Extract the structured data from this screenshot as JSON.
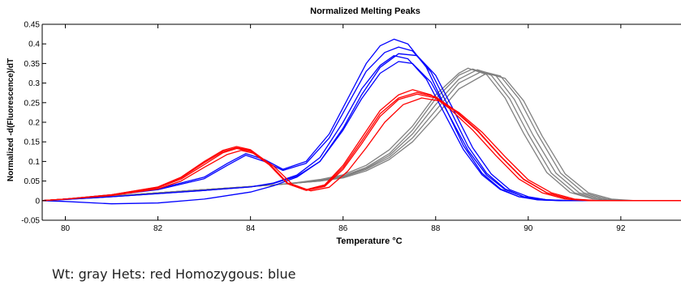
{
  "caption": "Wt:  gray Hets: red Homozygous: blue",
  "colors": {
    "wt": "#808080",
    "het": "#ff0000",
    "hom": "#0000ff",
    "axis": "#000000",
    "background": "#ffffff"
  },
  "chart_data": {
    "type": "line",
    "title": "Normalized Melting Peaks",
    "xlabel": "Temperature °C",
    "ylabel": "Normalized -d(Fluorescence)/dT",
    "xlim": [
      79.5,
      93.3
    ],
    "ylim": [
      -0.05,
      0.45
    ],
    "xticks": [
      80,
      82,
      84,
      86,
      88,
      90,
      92
    ],
    "yticks": [
      -0.05,
      0,
      0.05,
      0.1,
      0.15,
      0.2,
      0.25,
      0.3,
      0.35,
      0.4,
      0.45
    ],
    "ytick_labels": [
      "-0.05",
      "0",
      "0.05",
      "0.1",
      "0.15",
      "0.2",
      "0.25",
      "0.3",
      "0.35",
      "0.4",
      "0.45"
    ],
    "grid": false,
    "legend": "none",
    "series": [
      {
        "group": "wt",
        "color": "#808080",
        "x": [
          79.5,
          80,
          81,
          82,
          83,
          84,
          84.5,
          85,
          85.5,
          86,
          86.5,
          87,
          87.5,
          88,
          88.5,
          88.8,
          89.2,
          89.6,
          90,
          90.5,
          91,
          91.5,
          92,
          93.3
        ],
        "y": [
          0,
          0.004,
          0.012,
          0.02,
          0.028,
          0.036,
          0.04,
          0.045,
          0.052,
          0.063,
          0.085,
          0.12,
          0.18,
          0.26,
          0.32,
          0.336,
          0.32,
          0.26,
          0.17,
          0.07,
          0.02,
          0.004,
          0,
          0
        ]
      },
      {
        "group": "wt",
        "color": "#808080",
        "x": [
          79.5,
          80,
          81,
          82,
          83,
          84,
          84.5,
          85,
          85.5,
          86,
          86.5,
          87,
          87.5,
          88,
          88.5,
          89,
          89.4,
          89.8,
          90.2,
          90.7,
          91.2,
          91.7,
          92.2,
          93.3
        ],
        "y": [
          0,
          0.004,
          0.012,
          0.02,
          0.028,
          0.036,
          0.04,
          0.045,
          0.05,
          0.06,
          0.08,
          0.11,
          0.16,
          0.23,
          0.3,
          0.33,
          0.318,
          0.26,
          0.17,
          0.07,
          0.02,
          0.004,
          0,
          0
        ]
      },
      {
        "group": "wt",
        "color": "#808080",
        "x": [
          79.5,
          80,
          81,
          82,
          83,
          84,
          84.5,
          85,
          85.5,
          86,
          86.5,
          87,
          87.5,
          88,
          88.5,
          88.7,
          89.1,
          89.5,
          89.9,
          90.4,
          90.9,
          91.4,
          91.9,
          93.3
        ],
        "y": [
          0,
          0.004,
          0.012,
          0.02,
          0.028,
          0.036,
          0.04,
          0.046,
          0.054,
          0.066,
          0.09,
          0.13,
          0.19,
          0.27,
          0.325,
          0.338,
          0.322,
          0.262,
          0.172,
          0.072,
          0.021,
          0.004,
          0,
          0
        ]
      },
      {
        "group": "wt",
        "color": "#808080",
        "x": [
          79.5,
          80,
          81,
          82,
          83,
          84,
          84.5,
          85,
          85.5,
          86,
          86.5,
          87,
          87.5,
          88,
          88.5,
          88.9,
          89.3,
          89.7,
          90.1,
          90.6,
          91.1,
          91.6,
          92.1,
          93.3
        ],
        "y": [
          0,
          0.004,
          0.012,
          0.02,
          0.028,
          0.036,
          0.04,
          0.045,
          0.051,
          0.062,
          0.082,
          0.115,
          0.17,
          0.245,
          0.31,
          0.334,
          0.319,
          0.258,
          0.168,
          0.07,
          0.02,
          0.004,
          0,
          0
        ]
      },
      {
        "group": "wt",
        "color": "#808080",
        "x": [
          79.5,
          80,
          81,
          82,
          83,
          84,
          84.5,
          85,
          85.5,
          86,
          86.5,
          87,
          87.5,
          88,
          88.5,
          89.1,
          89.5,
          89.9,
          90.3,
          90.8,
          91.3,
          91.8,
          92.3,
          93.3
        ],
        "y": [
          0,
          0.004,
          0.012,
          0.02,
          0.028,
          0.036,
          0.04,
          0.045,
          0.05,
          0.058,
          0.076,
          0.105,
          0.15,
          0.215,
          0.285,
          0.325,
          0.312,
          0.255,
          0.165,
          0.068,
          0.02,
          0.004,
          0,
          0
        ]
      },
      {
        "group": "het",
        "color": "#ff0000",
        "x": [
          79.5,
          80,
          81,
          82,
          82.5,
          83,
          83.4,
          83.7,
          84,
          84.4,
          84.8,
          85.2,
          85.6,
          86,
          86.4,
          86.8,
          87.2,
          87.5,
          87.9,
          88.3,
          88.8,
          89.3,
          89.8,
          90.3,
          90.8,
          91.3,
          93.3
        ],
        "y": [
          0,
          0.004,
          0.015,
          0.035,
          0.06,
          0.1,
          0.128,
          0.138,
          0.13,
          0.095,
          0.045,
          0.028,
          0.04,
          0.09,
          0.16,
          0.23,
          0.27,
          0.283,
          0.27,
          0.235,
          0.18,
          0.115,
          0.055,
          0.02,
          0.004,
          0,
          0
        ]
      },
      {
        "group": "het",
        "color": "#ff0000",
        "x": [
          79.5,
          80,
          81,
          82,
          82.5,
          83,
          83.4,
          83.7,
          84,
          84.4,
          84.8,
          85.2,
          85.6,
          86,
          86.4,
          86.8,
          87.2,
          87.6,
          88,
          88.4,
          88.9,
          89.4,
          89.9,
          90.4,
          90.9,
          91.4,
          93.3
        ],
        "y": [
          0,
          0.004,
          0.014,
          0.033,
          0.055,
          0.092,
          0.122,
          0.133,
          0.126,
          0.092,
          0.043,
          0.026,
          0.036,
          0.08,
          0.145,
          0.215,
          0.258,
          0.272,
          0.262,
          0.23,
          0.178,
          0.113,
          0.054,
          0.02,
          0.004,
          0,
          0
        ]
      },
      {
        "group": "het",
        "color": "#ff0000",
        "x": [
          79.5,
          80,
          81,
          82,
          82.5,
          83,
          83.5,
          83.8,
          84.1,
          84.5,
          84.9,
          85.3,
          85.7,
          86.1,
          86.5,
          86.9,
          87.3,
          87.7,
          88.1,
          88.5,
          89,
          89.5,
          90,
          90.5,
          91,
          91.5,
          93.3
        ],
        "y": [
          0,
          0.004,
          0.013,
          0.03,
          0.05,
          0.085,
          0.118,
          0.128,
          0.12,
          0.088,
          0.042,
          0.025,
          0.034,
          0.075,
          0.135,
          0.2,
          0.245,
          0.262,
          0.254,
          0.225,
          0.175,
          0.112,
          0.053,
          0.02,
          0.004,
          0,
          0
        ]
      },
      {
        "group": "het",
        "color": "#ff0000",
        "x": [
          79.5,
          80,
          81,
          82,
          82.5,
          83,
          83.4,
          83.7,
          84,
          84.4,
          84.8,
          85.2,
          85.6,
          86,
          86.4,
          86.8,
          87.2,
          87.6,
          88,
          88.4,
          88.9,
          89.4,
          89.9,
          90.4,
          90.9,
          91.4,
          93.3
        ],
        "y": [
          0,
          0.004,
          0.015,
          0.034,
          0.058,
          0.097,
          0.125,
          0.135,
          0.128,
          0.094,
          0.044,
          0.027,
          0.038,
          0.085,
          0.152,
          0.222,
          0.262,
          0.276,
          0.265,
          0.232,
          0.18,
          0.114,
          0.055,
          0.02,
          0.004,
          0,
          0
        ]
      },
      {
        "group": "hom",
        "color": "#0000ff",
        "x": [
          79.5,
          80,
          81,
          82,
          83,
          83.5,
          83.9,
          84.3,
          84.7,
          85.2,
          85.7,
          86.1,
          86.5,
          86.8,
          87.1,
          87.4,
          87.8,
          88.2,
          88.6,
          89,
          89.4,
          89.8,
          90.3,
          90.8,
          91.3,
          93.3
        ],
        "y": [
          0,
          0.004,
          0.015,
          0.03,
          0.06,
          0.095,
          0.12,
          0.105,
          0.08,
          0.1,
          0.17,
          0.26,
          0.35,
          0.395,
          0.412,
          0.4,
          0.34,
          0.24,
          0.14,
          0.07,
          0.03,
          0.01,
          0.002,
          0,
          0,
          0
        ]
      },
      {
        "group": "hom",
        "color": "#0000ff",
        "x": [
          79.5,
          80,
          81,
          82,
          83,
          83.5,
          83.9,
          84.3,
          84.7,
          85.2,
          85.7,
          86.1,
          86.5,
          86.9,
          87.2,
          87.5,
          87.9,
          88.3,
          88.7,
          89.1,
          89.5,
          89.9,
          90.4,
          90.9,
          91.4,
          93.3
        ],
        "y": [
          0,
          0.004,
          0.014,
          0.028,
          0.056,
          0.09,
          0.116,
          0.1,
          0.077,
          0.095,
          0.16,
          0.245,
          0.33,
          0.378,
          0.392,
          0.382,
          0.328,
          0.235,
          0.138,
          0.07,
          0.03,
          0.01,
          0.002,
          0,
          0,
          0
        ]
      },
      {
        "group": "hom",
        "color": "#0000ff",
        "x": [
          79.5,
          80,
          81,
          82,
          83,
          84,
          84.5,
          85,
          85.5,
          86,
          86.4,
          86.8,
          87.1,
          87.4,
          87.8,
          88.2,
          88.6,
          89,
          89.4,
          89.8,
          90.2,
          90.7,
          91.2,
          93.3
        ],
        "y": [
          0,
          0.003,
          0.01,
          0.018,
          0.026,
          0.035,
          0.045,
          0.065,
          0.11,
          0.2,
          0.285,
          0.345,
          0.37,
          0.362,
          0.31,
          0.22,
          0.13,
          0.066,
          0.028,
          0.01,
          0.002,
          0,
          0,
          0
        ]
      },
      {
        "group": "hom",
        "color": "#0000ff",
        "x": [
          79.5,
          80,
          81,
          82,
          83,
          84,
          84.5,
          85,
          85.5,
          86,
          86.4,
          86.8,
          87.2,
          87.5,
          87.9,
          88.3,
          88.7,
          89.1,
          89.5,
          89.9,
          90.3,
          90.8,
          91.3,
          93.3
        ],
        "y": [
          0,
          0.003,
          0.01,
          0.018,
          0.026,
          0.035,
          0.044,
          0.062,
          0.1,
          0.18,
          0.26,
          0.325,
          0.355,
          0.35,
          0.302,
          0.216,
          0.128,
          0.065,
          0.028,
          0.01,
          0.002,
          0,
          0,
          0
        ]
      },
      {
        "group": "hom",
        "color": "#0000ff",
        "x": [
          79.5,
          80,
          81,
          82,
          83,
          84,
          84.5,
          85,
          85.5,
          86,
          86.4,
          86.8,
          87.2,
          87.6,
          88,
          88.4,
          88.8,
          89.2,
          89.6,
          90,
          90.4,
          90.9,
          91.4,
          93.3
        ],
        "y": [
          0,
          -0.002,
          -0.008,
          -0.006,
          0.004,
          0.022,
          0.038,
          0.06,
          0.1,
          0.185,
          0.27,
          0.34,
          0.375,
          0.37,
          0.32,
          0.228,
          0.135,
          0.068,
          0.028,
          0.01,
          0.002,
          0,
          0,
          0
        ]
      }
    ]
  }
}
